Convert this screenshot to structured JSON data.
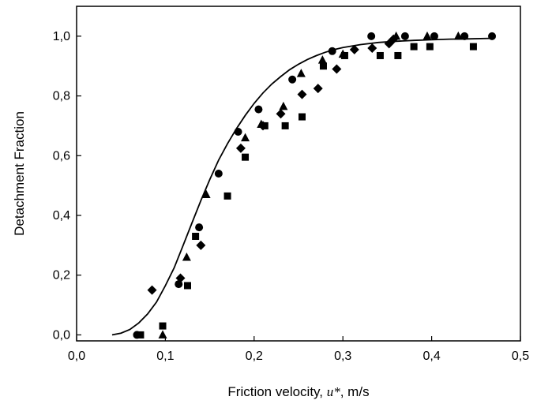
{
  "chart_data": {
    "type": "scatter",
    "xlabel_prefix": "Friction velocity, ",
    "xlabel_symbol": "u*",
    "xlabel_suffix": ", m/s",
    "ylabel": "Detachment Fraction",
    "xlim": [
      0.0,
      0.5
    ],
    "ylim": [
      -0.02,
      1.1
    ],
    "x_ticks": [
      0.0,
      0.1,
      0.2,
      0.3,
      0.4,
      0.5
    ],
    "x_tick_labels": [
      "0,0",
      "0,1",
      "0,2",
      "0,3",
      "0,4",
      "0,5"
    ],
    "y_ticks": [
      0.0,
      0.2,
      0.4,
      0.6,
      0.8,
      1.0
    ],
    "y_tick_labels": [
      "0,0",
      "0,2",
      "0,4",
      "0,6",
      "0,8",
      "1,0"
    ],
    "grid": false,
    "series": [
      {
        "marker": "circle",
        "points": [
          [
            0.068,
            0.0
          ],
          [
            0.115,
            0.17
          ],
          [
            0.138,
            0.36
          ],
          [
            0.16,
            0.54
          ],
          [
            0.182,
            0.68
          ],
          [
            0.205,
            0.755
          ],
          [
            0.243,
            0.855
          ],
          [
            0.288,
            0.95
          ],
          [
            0.332,
            1.0
          ],
          [
            0.37,
            1.0
          ],
          [
            0.403,
            1.0
          ],
          [
            0.437,
            1.0
          ],
          [
            0.468,
            1.0
          ]
        ]
      },
      {
        "marker": "square",
        "points": [
          [
            0.072,
            0.0
          ],
          [
            0.097,
            0.03
          ],
          [
            0.125,
            0.165
          ],
          [
            0.134,
            0.33
          ],
          [
            0.17,
            0.465
          ],
          [
            0.19,
            0.595
          ],
          [
            0.212,
            0.7
          ],
          [
            0.235,
            0.7
          ],
          [
            0.254,
            0.73
          ],
          [
            0.278,
            0.9
          ],
          [
            0.302,
            0.935
          ],
          [
            0.342,
            0.935
          ],
          [
            0.362,
            0.935
          ],
          [
            0.38,
            0.965
          ],
          [
            0.398,
            0.965
          ],
          [
            0.447,
            0.965
          ]
        ]
      },
      {
        "marker": "triangle",
        "points": [
          [
            0.097,
            0.0
          ],
          [
            0.124,
            0.26
          ],
          [
            0.146,
            0.47
          ],
          [
            0.19,
            0.66
          ],
          [
            0.208,
            0.705
          ],
          [
            0.233,
            0.765
          ],
          [
            0.253,
            0.875
          ],
          [
            0.277,
            0.92
          ],
          [
            0.3,
            0.94
          ],
          [
            0.36,
            1.0
          ],
          [
            0.395,
            1.0
          ],
          [
            0.43,
            1.0
          ]
        ]
      },
      {
        "marker": "diamond",
        "points": [
          [
            0.085,
            0.15
          ],
          [
            0.117,
            0.19
          ],
          [
            0.14,
            0.3
          ],
          [
            0.185,
            0.625
          ],
          [
            0.21,
            0.7
          ],
          [
            0.23,
            0.74
          ],
          [
            0.254,
            0.805
          ],
          [
            0.272,
            0.825
          ],
          [
            0.293,
            0.89
          ],
          [
            0.313,
            0.955
          ],
          [
            0.333,
            0.96
          ],
          [
            0.352,
            0.975
          ],
          [
            0.357,
            0.99
          ]
        ]
      }
    ],
    "fit_curve": {
      "x": [
        0.04,
        0.05,
        0.06,
        0.07,
        0.08,
        0.09,
        0.1,
        0.11,
        0.12,
        0.13,
        0.14,
        0.15,
        0.16,
        0.17,
        0.18,
        0.19,
        0.2,
        0.21,
        0.22,
        0.23,
        0.24,
        0.25,
        0.26,
        0.27,
        0.28,
        0.29,
        0.3,
        0.32,
        0.34,
        0.36,
        0.38,
        0.4,
        0.42,
        0.44,
        0.47
      ],
      "y": [
        0.0,
        0.006,
        0.018,
        0.04,
        0.07,
        0.11,
        0.165,
        0.225,
        0.3,
        0.375,
        0.45,
        0.52,
        0.585,
        0.64,
        0.69,
        0.735,
        0.775,
        0.81,
        0.84,
        0.865,
        0.888,
        0.906,
        0.922,
        0.935,
        0.946,
        0.955,
        0.962,
        0.972,
        0.979,
        0.983,
        0.986,
        0.988,
        0.99,
        0.991,
        0.993
      ]
    }
  }
}
